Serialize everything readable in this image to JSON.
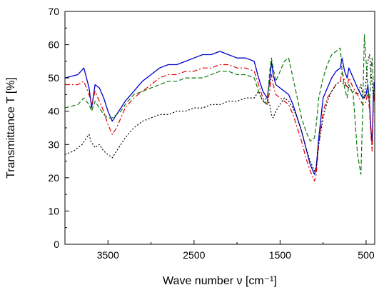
{
  "chart_data": {
    "type": "line",
    "xlabel": "Wave number ν [cm⁻¹]",
    "ylabel": "Transmittance T [%]",
    "xlim": [
      4000,
      400
    ],
    "ylim": [
      0,
      70
    ],
    "x_reversed": true,
    "grid": false,
    "legend": "none",
    "xticks": [
      3500,
      2500,
      1500,
      500
    ],
    "xtick_labels": [
      "3500",
      "2500",
      "1500",
      "500"
    ],
    "yticks": [
      0,
      10,
      20,
      30,
      40,
      50,
      60,
      70
    ],
    "ytick_labels": [
      "0",
      "10",
      "20",
      "30",
      "40",
      "50",
      "60",
      "70"
    ],
    "series": [
      {
        "color": "#0000cc",
        "dash": "solid",
        "x": [
          4000,
          3850,
          3780,
          3720,
          3690,
          3650,
          3600,
          3550,
          3500,
          3450,
          3400,
          3350,
          3300,
          3200,
          3100,
          3000,
          2900,
          2800,
          2700,
          2600,
          2500,
          2400,
          2300,
          2200,
          2100,
          2000,
          1900,
          1800,
          1750,
          1700,
          1650,
          1620,
          1600,
          1580,
          1550,
          1500,
          1450,
          1400,
          1350,
          1300,
          1250,
          1200,
          1150,
          1100,
          1080,
          1050,
          1000,
          950,
          900,
          850,
          800,
          780,
          750,
          720,
          700,
          650,
          600,
          560,
          540,
          520,
          500,
          480,
          460,
          445,
          430,
          415,
          400
        ],
        "y": [
          50,
          51,
          53,
          47,
          41,
          48,
          47,
          44,
          40,
          37,
          39,
          41,
          43,
          46,
          49,
          51,
          53,
          54,
          54,
          55,
          56,
          57,
          57,
          58,
          57,
          56,
          56,
          55,
          50,
          46,
          44,
          49,
          55,
          51,
          48,
          47,
          46,
          45,
          42,
          38,
          34,
          29,
          24,
          21,
          23,
          32,
          44,
          47,
          50,
          52,
          53,
          56,
          52,
          50,
          53,
          50,
          47,
          45,
          44,
          44,
          45,
          48,
          42,
          35,
          30,
          45,
          49
        ]
      },
      {
        "color": "#e00000",
        "dash": "dashdot",
        "x": [
          4000,
          3850,
          3780,
          3720,
          3690,
          3650,
          3600,
          3550,
          3500,
          3450,
          3400,
          3350,
          3300,
          3200,
          3100,
          3000,
          2900,
          2800,
          2700,
          2600,
          2500,
          2400,
          2300,
          2200,
          2100,
          2000,
          1900,
          1800,
          1750,
          1700,
          1650,
          1620,
          1600,
          1580,
          1550,
          1500,
          1450,
          1400,
          1350,
          1300,
          1250,
          1200,
          1150,
          1100,
          1080,
          1050,
          1000,
          950,
          900,
          850,
          800,
          780,
          750,
          720,
          700,
          650,
          600,
          560,
          540,
          520,
          500,
          480,
          460,
          445,
          430,
          415,
          400
        ],
        "y": [
          48,
          48,
          49,
          45,
          42,
          46,
          43,
          40,
          36,
          33,
          35,
          38,
          41,
          44,
          46,
          48,
          50,
          51,
          51,
          52,
          52,
          53,
          53,
          54,
          54,
          53,
          53,
          52,
          48,
          44,
          42,
          46,
          51,
          48,
          45,
          44,
          43,
          42,
          39,
          35,
          31,
          26,
          22,
          19,
          21,
          30,
          40,
          44,
          46,
          48,
          49,
          52,
          49,
          47,
          50,
          47,
          45,
          43,
          42,
          42,
          43,
          46,
          40,
          33,
          28,
          42,
          46
        ]
      },
      {
        "color": "#0a7a0a",
        "dash": "dashed",
        "x": [
          4000,
          3850,
          3780,
          3720,
          3690,
          3650,
          3600,
          3550,
          3500,
          3450,
          3400,
          3350,
          3300,
          3200,
          3100,
          3000,
          2900,
          2800,
          2700,
          2600,
          2500,
          2400,
          2300,
          2200,
          2100,
          2000,
          1900,
          1800,
          1750,
          1700,
          1650,
          1620,
          1600,
          1580,
          1550,
          1500,
          1450,
          1400,
          1350,
          1300,
          1250,
          1200,
          1150,
          1100,
          1080,
          1050,
          1000,
          950,
          900,
          850,
          800,
          780,
          750,
          720,
          700,
          650,
          600,
          560,
          540,
          520,
          500,
          480,
          460,
          445,
          430,
          415,
          400
        ],
        "y": [
          41,
          42,
          44,
          42,
          40,
          43,
          41,
          39,
          38,
          38,
          39,
          40,
          42,
          45,
          46,
          47,
          48,
          49,
          49,
          50,
          50,
          50,
          51,
          52,
          52,
          51,
          51,
          50,
          46,
          43,
          42,
          52,
          56,
          53,
          49,
          52,
          55,
          56,
          50,
          44,
          38,
          34,
          31,
          32,
          36,
          44,
          50,
          54,
          57,
          58,
          59,
          52,
          47,
          44,
          48,
          45,
          27,
          21,
          40,
          63,
          55,
          47,
          42,
          52,
          56,
          48,
          46
        ]
      },
      {
        "color": "#000000",
        "dash": "dotted",
        "x": [
          4000,
          3900,
          3850,
          3800,
          3750,
          3720,
          3700,
          3650,
          3600,
          3550,
          3500,
          3450,
          3400,
          3350,
          3300,
          3200,
          3100,
          3000,
          2900,
          2800,
          2700,
          2600,
          2500,
          2400,
          2300,
          2200,
          2100,
          2000,
          1900,
          1800,
          1750,
          1700,
          1650,
          1620,
          1600,
          1580,
          1550,
          1500,
          1450,
          1400,
          1350,
          1300,
          1250,
          1200,
          1150,
          1100,
          1080,
          1050,
          1000,
          950,
          900,
          850,
          800,
          750,
          700,
          650,
          600,
          560,
          540,
          520,
          500,
          480,
          460,
          445,
          430,
          415,
          400
        ],
        "y": [
          27,
          28,
          29,
          30,
          32,
          33,
          31,
          29,
          30,
          28,
          27,
          26,
          28,
          30,
          32,
          35,
          37,
          38,
          39,
          39,
          40,
          40,
          41,
          41,
          42,
          42,
          43,
          43,
          44,
          44,
          46,
          43,
          44,
          42,
          39,
          38,
          40,
          42,
          44,
          43,
          41,
          38,
          34,
          29,
          25,
          22,
          23,
          30,
          38,
          43,
          46,
          48,
          49,
          48,
          47,
          46,
          45,
          48,
          45,
          44,
          49,
          55,
          57,
          52,
          48,
          44,
          45
        ]
      }
    ]
  }
}
